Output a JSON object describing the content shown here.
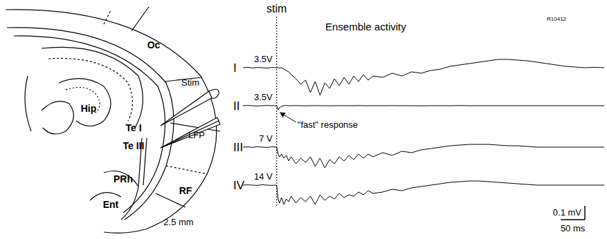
{
  "diagram": {
    "regions": [
      "Oc",
      "Hip",
      "Te I",
      "Te III",
      "PRh",
      "Ent",
      "RF"
    ],
    "electrodes": [
      "Stim",
      "LFP"
    ],
    "section_label": "2.5 mm"
  },
  "chart_data": {
    "type": "line",
    "title": "Ensemble activity",
    "stim_label": "stim",
    "stim_time": 0,
    "record_id": "R10412",
    "annotation": {
      "text": "\"fast\" response",
      "series": "II"
    },
    "tick_labels": false,
    "grid": false,
    "xlim": [
      -70,
      680
    ],
    "ylim": [
      -0.25,
      0.1
    ],
    "x": [
      -70,
      -60,
      -50,
      -40,
      -30,
      -20,
      -10,
      0,
      3,
      6,
      10,
      15,
      20,
      25,
      30,
      40,
      50,
      60,
      70,
      80,
      90,
      100,
      110,
      120,
      130,
      140,
      150,
      160,
      170,
      180,
      190,
      200,
      220,
      240,
      260,
      280,
      300,
      320,
      340,
      360,
      380,
      400,
      420,
      440,
      460,
      480,
      500,
      520,
      540,
      560,
      580,
      600,
      620,
      640,
      660,
      680
    ],
    "series": [
      {
        "name": "I",
        "stimulus": "3.5V",
        "color": "#000000",
        "values": [
          0,
          0.003,
          -0.002,
          0.002,
          0,
          -0.003,
          0.002,
          0,
          0,
          -0.005,
          0,
          -0.01,
          -0.02,
          -0.03,
          -0.05,
          -0.08,
          -0.12,
          -0.09,
          -0.18,
          -0.1,
          -0.2,
          -0.11,
          -0.15,
          -0.08,
          -0.13,
          -0.07,
          -0.12,
          -0.06,
          -0.1,
          -0.05,
          -0.09,
          -0.06,
          -0.07,
          -0.04,
          -0.06,
          -0.03,
          -0.04,
          -0.02,
          -0.01,
          0.01,
          0.02,
          0.03,
          0.04,
          0.05,
          0.06,
          0.06,
          0.055,
          0.05,
          0.04,
          0.03,
          0.02,
          0.01,
          0.005,
          0,
          0.003,
          0
        ]
      },
      {
        "name": "II",
        "stimulus": "3.5V",
        "color": "#000000",
        "values": [
          0,
          0.002,
          0,
          -0.002,
          0,
          0.002,
          0,
          0,
          -0.03,
          -0.015,
          -0.005,
          0,
          0.002,
          0,
          0,
          0.001,
          0,
          -0.001,
          0,
          0.001,
          0,
          0,
          -0.001,
          0,
          0.001,
          0,
          0,
          0,
          0.001,
          0,
          0,
          0,
          0,
          0.001,
          0,
          0,
          -0.001,
          0,
          0,
          0,
          0.001,
          0,
          0,
          0,
          0,
          0,
          0,
          0,
          0,
          0,
          0,
          0,
          0,
          0,
          0,
          0
        ]
      },
      {
        "name": "III",
        "stimulus": "7 V",
        "color": "#000000",
        "values": [
          0,
          0.002,
          -0.002,
          0.003,
          0,
          -0.002,
          0.002,
          0,
          -0.05,
          -0.07,
          -0.05,
          -0.08,
          -0.06,
          -0.1,
          -0.07,
          -0.12,
          -0.08,
          -0.11,
          -0.07,
          -0.14,
          -0.08,
          -0.15,
          -0.09,
          -0.12,
          -0.07,
          -0.1,
          -0.06,
          -0.09,
          -0.05,
          -0.08,
          -0.05,
          -0.07,
          -0.04,
          -0.06,
          -0.03,
          -0.04,
          -0.02,
          -0.01,
          0,
          0.01,
          0.015,
          0.02,
          0.02,
          0.02,
          0.015,
          0.01,
          0.01,
          0.005,
          0,
          0,
          0,
          0,
          0,
          0,
          0,
          0
        ]
      },
      {
        "name": "IV",
        "stimulus": "14 V",
        "color": "#000000",
        "values": [
          0,
          0.002,
          0,
          -0.002,
          0.003,
          0,
          -0.002,
          0,
          -0.1,
          -0.13,
          -0.09,
          -0.14,
          -0.1,
          -0.12,
          -0.08,
          -0.13,
          -0.09,
          -0.12,
          -0.08,
          -0.14,
          -0.07,
          -0.11,
          -0.08,
          -0.1,
          -0.06,
          -0.09,
          -0.07,
          -0.08,
          -0.05,
          -0.07,
          -0.04,
          -0.06,
          -0.05,
          -0.03,
          -0.04,
          -0.02,
          -0.01,
          0,
          0.01,
          0.02,
          0.025,
          0.03,
          0.03,
          0.025,
          0.02,
          0.015,
          0.01,
          0.005,
          0,
          0,
          0,
          0,
          0,
          0,
          0,
          0
        ]
      }
    ],
    "scale_bars": {
      "y": {
        "value": 0.1,
        "label": "0.1 mV"
      },
      "x": {
        "value": 50,
        "label": "50 ms"
      }
    }
  }
}
